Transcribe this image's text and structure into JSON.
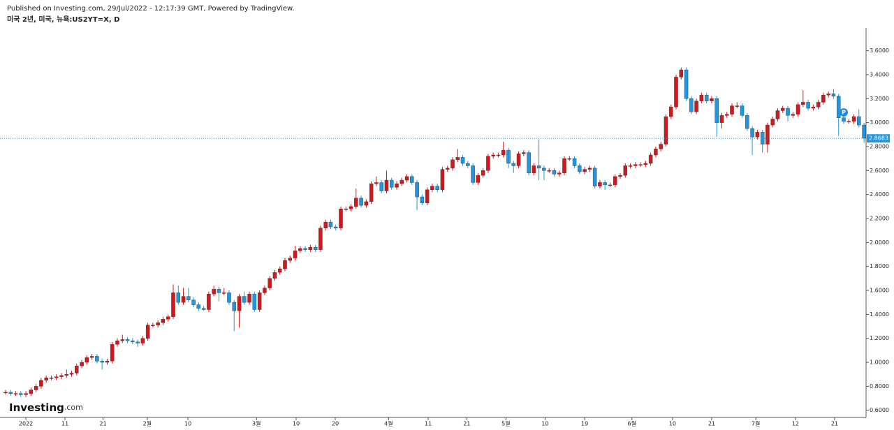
{
  "header": {
    "published": "Published on Investing.com, 29/Jul/2022 - 12:17:39 GMT, Powered by TradingView.",
    "symbol": "미국 2년, 미국, 뉴욕:US2YT=X, D"
  },
  "logo": {
    "name": "Investing",
    "suffix": ".com"
  },
  "chart_data": {
    "type": "candlestick",
    "up_color": "#d0181e",
    "down_color": "#2196e0",
    "marker_label": "P",
    "last_price": 2.8683,
    "ylim": [
      0.54,
      3.79
    ],
    "yticks": [
      {
        "value": 0.6,
        "label": "0.6000"
      },
      {
        "value": 0.8,
        "label": "0.8000"
      },
      {
        "value": 1.0,
        "label": "1.0000"
      },
      {
        "value": 1.2,
        "label": "1.2000"
      },
      {
        "value": 1.4,
        "label": "1.4000"
      },
      {
        "value": 1.6,
        "label": "1.6000"
      },
      {
        "value": 1.8,
        "label": "1.8000"
      },
      {
        "value": 2.0,
        "label": "2.0000"
      },
      {
        "value": 2.2,
        "label": "2.2000"
      },
      {
        "value": 2.4,
        "label": "2.4000"
      },
      {
        "value": 2.6,
        "label": "2.6000"
      },
      {
        "value": 2.8,
        "label": "2.8000"
      },
      {
        "value": 3.0,
        "label": "3.0000"
      },
      {
        "value": 3.2,
        "label": "3.2000"
      },
      {
        "value": 3.4,
        "label": "3.4000"
      },
      {
        "value": 3.6,
        "label": "3.6000"
      }
    ],
    "xlim": [
      -1.1,
      169.4
    ],
    "xticks": [
      {
        "value": 4.0,
        "label": "2022"
      },
      {
        "value": 11.7,
        "label": "11"
      },
      {
        "value": 19.2,
        "label": "21"
      },
      {
        "value": 27.9,
        "label": "2월"
      },
      {
        "value": 35.9,
        "label": "10"
      },
      {
        "value": 49.4,
        "label": "3월"
      },
      {
        "value": 57.2,
        "label": "10"
      },
      {
        "value": 64.9,
        "label": "20"
      },
      {
        "value": 75.4,
        "label": "4월"
      },
      {
        "value": 83.2,
        "label": "11"
      },
      {
        "value": 90.8,
        "label": "21"
      },
      {
        "value": 98.5,
        "label": "5월"
      },
      {
        "value": 106.2,
        "label": "10"
      },
      {
        "value": 114.0,
        "label": "19"
      },
      {
        "value": 123.3,
        "label": "6월"
      },
      {
        "value": 131.3,
        "label": "10"
      },
      {
        "value": 139.0,
        "label": "21"
      },
      {
        "value": 147.7,
        "label": "7월"
      },
      {
        "value": 155.5,
        "label": "12"
      },
      {
        "value": 163.2,
        "label": "21"
      }
    ],
    "candles": [
      [
        0.75,
        0.77,
        0.73,
        0.75
      ],
      [
        0.75,
        0.77,
        0.72,
        0.74
      ],
      [
        0.74,
        0.76,
        0.72,
        0.74
      ],
      [
        0.74,
        0.76,
        0.71,
        0.73
      ],
      [
        0.73,
        0.76,
        0.71,
        0.74
      ],
      [
        0.74,
        0.79,
        0.72,
        0.77
      ],
      [
        0.77,
        0.82,
        0.75,
        0.8
      ],
      [
        0.8,
        0.87,
        0.78,
        0.85
      ],
      [
        0.85,
        0.89,
        0.83,
        0.87
      ],
      [
        0.87,
        0.89,
        0.85,
        0.87
      ],
      [
        0.87,
        0.9,
        0.85,
        0.88
      ],
      [
        0.88,
        0.91,
        0.86,
        0.89
      ],
      [
        0.89,
        0.94,
        0.87,
        0.9
      ],
      [
        0.9,
        0.93,
        0.88,
        0.91
      ],
      [
        0.91,
        0.99,
        0.89,
        0.97
      ],
      [
        0.97,
        1.02,
        0.95,
        1.0
      ],
      [
        1.0,
        1.06,
        0.98,
        1.04
      ],
      [
        1.04,
        1.07,
        1.02,
        1.05
      ],
      [
        1.05,
        1.07,
        0.99,
        1.01
      ],
      [
        1.01,
        1.03,
        0.94,
        1.0
      ],
      [
        1.0,
        1.03,
        0.98,
        1.01
      ],
      [
        1.01,
        1.17,
        0.99,
        1.15
      ],
      [
        1.15,
        1.2,
        1.13,
        1.18
      ],
      [
        1.18,
        1.23,
        1.16,
        1.19
      ],
      [
        1.19,
        1.21,
        1.16,
        1.18
      ],
      [
        1.18,
        1.2,
        1.15,
        1.17
      ],
      [
        1.17,
        1.19,
        1.13,
        1.16
      ],
      [
        1.16,
        1.22,
        1.14,
        1.2
      ],
      [
        1.2,
        1.33,
        1.18,
        1.31
      ],
      [
        1.31,
        1.33,
        1.29,
        1.31
      ],
      [
        1.31,
        1.35,
        1.29,
        1.33
      ],
      [
        1.33,
        1.38,
        1.31,
        1.36
      ],
      [
        1.36,
        1.4,
        1.34,
        1.38
      ],
      [
        1.38,
        1.65,
        1.36,
        1.58
      ],
      [
        1.58,
        1.64,
        1.48,
        1.5
      ],
      [
        1.5,
        1.62,
        1.48,
        1.55
      ],
      [
        1.55,
        1.62,
        1.5,
        1.52
      ],
      [
        1.52,
        1.54,
        1.46,
        1.48
      ],
      [
        1.48,
        1.5,
        1.43,
        1.45
      ],
      [
        1.45,
        1.47,
        1.43,
        1.44
      ],
      [
        1.44,
        1.59,
        1.42,
        1.57
      ],
      [
        1.57,
        1.64,
        1.55,
        1.61
      ],
      [
        1.61,
        1.63,
        1.51,
        1.58
      ],
      [
        1.58,
        1.62,
        1.56,
        1.58
      ],
      [
        1.58,
        1.6,
        1.48,
        1.5
      ],
      [
        1.5,
        1.52,
        1.26,
        1.43
      ],
      [
        1.43,
        1.57,
        1.29,
        1.55
      ],
      [
        1.55,
        1.59,
        1.48,
        1.5
      ],
      [
        1.5,
        1.59,
        1.48,
        1.57
      ],
      [
        1.57,
        1.59,
        1.42,
        1.44
      ],
      [
        1.44,
        1.6,
        1.42,
        1.58
      ],
      [
        1.58,
        1.64,
        1.56,
        1.62
      ],
      [
        1.62,
        1.72,
        1.6,
        1.7
      ],
      [
        1.7,
        1.77,
        1.68,
        1.75
      ],
      [
        1.75,
        1.8,
        1.73,
        1.78
      ],
      [
        1.78,
        1.87,
        1.76,
        1.85
      ],
      [
        1.85,
        1.89,
        1.83,
        1.87
      ],
      [
        1.87,
        1.97,
        1.85,
        1.93
      ],
      [
        1.93,
        1.97,
        1.91,
        1.95
      ],
      [
        1.95,
        1.97,
        1.92,
        1.94
      ],
      [
        1.94,
        1.98,
        1.92,
        1.96
      ],
      [
        1.96,
        1.98,
        1.92,
        1.94
      ],
      [
        1.94,
        2.14,
        1.92,
        2.12
      ],
      [
        2.12,
        2.19,
        2.1,
        2.17
      ],
      [
        2.17,
        2.19,
        2.11,
        2.13
      ],
      [
        2.13,
        2.15,
        2.1,
        2.12
      ],
      [
        2.12,
        2.3,
        2.1,
        2.28
      ],
      [
        2.28,
        2.3,
        2.26,
        2.28
      ],
      [
        2.28,
        2.32,
        2.26,
        2.3
      ],
      [
        2.3,
        2.45,
        2.28,
        2.37
      ],
      [
        2.37,
        2.39,
        2.29,
        2.31
      ],
      [
        2.31,
        2.36,
        2.29,
        2.34
      ],
      [
        2.34,
        2.51,
        2.32,
        2.49
      ],
      [
        2.49,
        2.55,
        2.47,
        2.5
      ],
      [
        2.5,
        2.52,
        2.41,
        2.43
      ],
      [
        2.43,
        2.6,
        2.41,
        2.52
      ],
      [
        2.52,
        2.54,
        2.44,
        2.46
      ],
      [
        2.46,
        2.51,
        2.44,
        2.49
      ],
      [
        2.49,
        2.54,
        2.47,
        2.52
      ],
      [
        2.52,
        2.57,
        2.5,
        2.55
      ],
      [
        2.55,
        2.57,
        2.48,
        2.5
      ],
      [
        2.5,
        2.52,
        2.27,
        2.38
      ],
      [
        2.38,
        2.4,
        2.31,
        2.33
      ],
      [
        2.33,
        2.46,
        2.31,
        2.44
      ],
      [
        2.44,
        2.49,
        2.42,
        2.47
      ],
      [
        2.47,
        2.49,
        2.42,
        2.44
      ],
      [
        2.44,
        2.63,
        2.42,
        2.61
      ],
      [
        2.61,
        2.64,
        2.59,
        2.62
      ],
      [
        2.62,
        2.71,
        2.6,
        2.69
      ],
      [
        2.69,
        2.78,
        2.67,
        2.71
      ],
      [
        2.71,
        2.73,
        2.64,
        2.66
      ],
      [
        2.66,
        2.68,
        2.62,
        2.64
      ],
      [
        2.64,
        2.66,
        2.48,
        2.5
      ],
      [
        2.5,
        2.58,
        2.48,
        2.56
      ],
      [
        2.56,
        2.62,
        2.54,
        2.6
      ],
      [
        2.6,
        2.74,
        2.58,
        2.72
      ],
      [
        2.72,
        2.75,
        2.7,
        2.73
      ],
      [
        2.73,
        2.75,
        2.71,
        2.73
      ],
      [
        2.73,
        2.84,
        2.71,
        2.77
      ],
      [
        2.77,
        2.79,
        2.62,
        2.66
      ],
      [
        2.66,
        2.68,
        2.58,
        2.64
      ],
      [
        2.64,
        2.76,
        2.62,
        2.74
      ],
      [
        2.74,
        2.77,
        2.72,
        2.75
      ],
      [
        2.75,
        2.77,
        2.56,
        2.58
      ],
      [
        2.58,
        2.66,
        2.56,
        2.64
      ],
      [
        2.64,
        2.86,
        2.52,
        2.62
      ],
      [
        2.62,
        2.64,
        2.52,
        2.6
      ],
      [
        2.6,
        2.62,
        2.58,
        2.6
      ],
      [
        2.6,
        2.62,
        2.55,
        2.57
      ],
      [
        2.57,
        2.6,
        2.55,
        2.58
      ],
      [
        2.58,
        2.72,
        2.56,
        2.7
      ],
      [
        2.7,
        2.72,
        2.68,
        2.7
      ],
      [
        2.7,
        2.72,
        2.62,
        2.64
      ],
      [
        2.64,
        2.66,
        2.57,
        2.59
      ],
      [
        2.59,
        2.63,
        2.57,
        2.61
      ],
      [
        2.61,
        2.64,
        2.59,
        2.62
      ],
      [
        2.62,
        2.64,
        2.45,
        2.47
      ],
      [
        2.47,
        2.52,
        2.45,
        2.5
      ],
      [
        2.5,
        2.52,
        2.44,
        2.48
      ],
      [
        2.48,
        2.5,
        2.46,
        2.48
      ],
      [
        2.48,
        2.57,
        2.46,
        2.55
      ],
      [
        2.55,
        2.58,
        2.53,
        2.56
      ],
      [
        2.56,
        2.66,
        2.54,
        2.64
      ],
      [
        2.64,
        2.66,
        2.62,
        2.64
      ],
      [
        2.64,
        2.67,
        2.62,
        2.65
      ],
      [
        2.65,
        2.67,
        2.63,
        2.65
      ],
      [
        2.65,
        2.68,
        2.63,
        2.66
      ],
      [
        2.66,
        2.75,
        2.64,
        2.73
      ],
      [
        2.73,
        2.8,
        2.71,
        2.78
      ],
      [
        2.78,
        2.84,
        2.76,
        2.82
      ],
      [
        2.82,
        3.07,
        2.8,
        3.05
      ],
      [
        3.05,
        3.15,
        3.03,
        3.13
      ],
      [
        3.13,
        3.4,
        3.11,
        3.38
      ],
      [
        3.38,
        3.46,
        3.36,
        3.44
      ],
      [
        3.44,
        3.46,
        3.18,
        3.2
      ],
      [
        3.2,
        3.22,
        3.07,
        3.09
      ],
      [
        3.09,
        3.2,
        3.07,
        3.18
      ],
      [
        3.18,
        3.25,
        3.16,
        3.23
      ],
      [
        3.23,
        3.25,
        3.16,
        3.18
      ],
      [
        3.18,
        3.22,
        3.16,
        3.2
      ],
      [
        3.2,
        3.22,
        2.88,
        3.0
      ],
      [
        3.0,
        3.08,
        2.95,
        3.06
      ],
      [
        3.06,
        3.09,
        3.04,
        3.07
      ],
      [
        3.07,
        3.16,
        3.05,
        3.14
      ],
      [
        3.14,
        3.17,
        3.12,
        3.14
      ],
      [
        3.14,
        3.16,
        3.04,
        3.06
      ],
      [
        3.06,
        3.08,
        2.93,
        2.95
      ],
      [
        2.95,
        2.97,
        2.73,
        2.88
      ],
      [
        2.88,
        2.94,
        2.86,
        2.92
      ],
      [
        2.92,
        2.94,
        2.75,
        2.82
      ],
      [
        2.82,
        3.0,
        2.75,
        2.98
      ],
      [
        2.98,
        3.05,
        2.96,
        3.03
      ],
      [
        3.03,
        3.12,
        3.01,
        3.1
      ],
      [
        3.1,
        3.14,
        3.08,
        3.12
      ],
      [
        3.12,
        3.14,
        3.01,
        3.06
      ],
      [
        3.06,
        3.09,
        3.04,
        3.07
      ],
      [
        3.07,
        3.17,
        3.05,
        3.15
      ],
      [
        3.15,
        3.27,
        3.13,
        3.17
      ],
      [
        3.17,
        3.19,
        3.1,
        3.12
      ],
      [
        3.12,
        3.15,
        3.1,
        3.13
      ],
      [
        3.13,
        3.19,
        3.11,
        3.17
      ],
      [
        3.17,
        3.25,
        3.15,
        3.23
      ],
      [
        3.23,
        3.26,
        3.21,
        3.24
      ],
      [
        3.24,
        3.28,
        3.2,
        3.22
      ],
      [
        3.22,
        3.24,
        2.89,
        3.04
      ],
      [
        3.04,
        3.06,
        2.99,
        3.01
      ],
      [
        3.01,
        3.03,
        2.99,
        3.01
      ],
      [
        3.01,
        3.07,
        2.99,
        3.05
      ],
      [
        3.05,
        3.11,
        2.96,
        2.98
      ],
      [
        2.98,
        3.0,
        2.83,
        2.87
      ]
    ]
  }
}
